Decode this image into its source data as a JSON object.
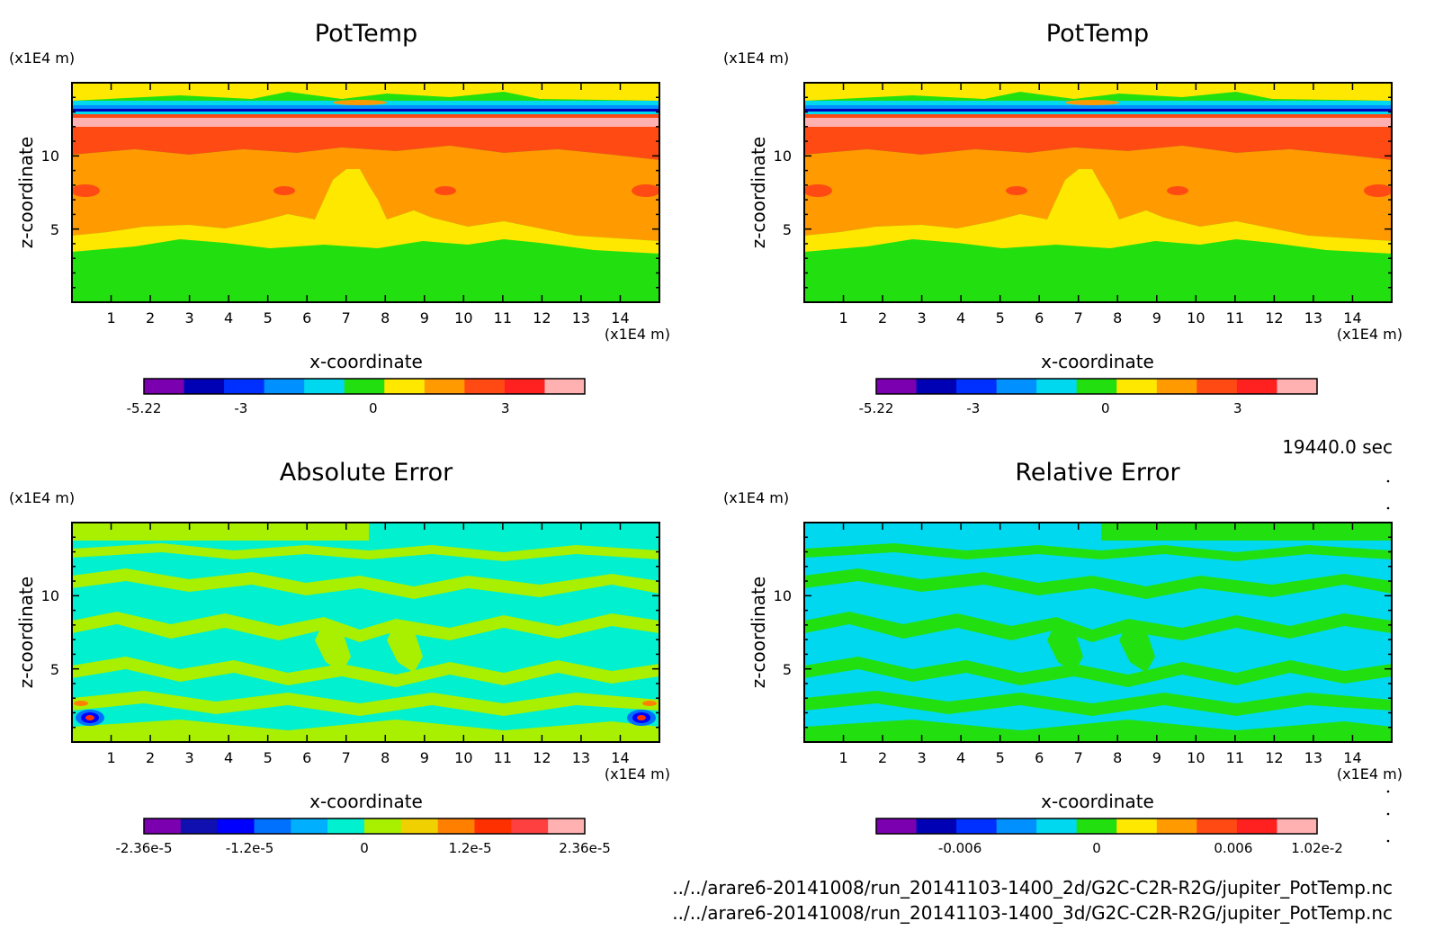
{
  "panels": [
    {
      "title": "PotTemp",
      "x_unit": "(x1E4 m)",
      "y_unit": "(x1E4 m)",
      "xlabel": "x-coordinate",
      "ylabel": "z-coordinate",
      "colorbar_labels": [
        "-5.22",
        "-3",
        "0",
        "3"
      ],
      "colorbar_colors": [
        "#7a00b0",
        "#0000b4",
        "#0030ff",
        "#0090ff",
        "#00d8f0",
        "#22e010",
        "#ffe800",
        "#ff9a00",
        "#ff4a14",
        "#ff2020",
        "#ffb0b0"
      ]
    },
    {
      "title": "PotTemp",
      "x_unit": "(x1E4 m)",
      "y_unit": "(x1E4 m)",
      "xlabel": "x-coordinate",
      "ylabel": "z-coordinate",
      "colorbar_labels": [
        "-5.22",
        "-3",
        "0",
        "3"
      ],
      "colorbar_colors": [
        "#7a00b0",
        "#0000b4",
        "#0030ff",
        "#0090ff",
        "#00d8f0",
        "#22e010",
        "#ffe800",
        "#ff9a00",
        "#ff4a14",
        "#ff2020",
        "#ffb0b0"
      ]
    },
    {
      "title": "Absolute Error",
      "x_unit": "(x1E4 m)",
      "y_unit": "(x1E4 m)",
      "xlabel": "x-coordinate",
      "ylabel": "z-coordinate",
      "colorbar_labels": [
        "-2.36e-5",
        "-1.2e-5",
        "0",
        "1.2e-5",
        "2.36e-5"
      ],
      "colorbar_colors": [
        "#7a00b0",
        "#1010b0",
        "#0000ff",
        "#0070ff",
        "#00b0ff",
        "#00f0d0",
        "#a8f000",
        "#f0d000",
        "#ff8000",
        "#ff3000",
        "#ff4040",
        "#ffb0b0"
      ]
    },
    {
      "title": "Relative Error",
      "x_unit": "(x1E4 m)",
      "y_unit": "(x1E4 m)",
      "xlabel": "x-coordinate",
      "ylabel": "z-coordinate",
      "colorbar_labels": [
        "-0.006",
        "0",
        "0.006",
        "1.02e-2"
      ],
      "colorbar_colors": [
        "#7a00b0",
        "#0000b4",
        "#0030ff",
        "#0090ff",
        "#00d8f0",
        "#22e010",
        "#ffe800",
        "#ff9a00",
        "#ff4a14",
        "#ff2020",
        "#ffb0b0"
      ]
    }
  ],
  "time_label": "19440.0 sec",
  "file_paths": [
    "../../arare6-20141008/run_20141103-1400_2d/G2C-C2R-R2G/jupiter_PotTemp.nc",
    "../../arare6-20141008/run_20141103-1400_3d/G2C-C2R-R2G/jupiter_PotTemp.nc"
  ],
  "chart_data": [
    {
      "type": "heatmap",
      "title": "PotTemp",
      "xlabel": "x-coordinate",
      "ylabel": "z-coordinate",
      "x_unit": "(x1E4 m)",
      "y_unit": "(x1E4 m)",
      "xlim": [
        0,
        15
      ],
      "ylim": [
        0,
        15
      ],
      "x_ticks": [
        "1",
        "2",
        "3",
        "4",
        "5",
        "6",
        "7",
        "8",
        "9",
        "10",
        "11",
        "12",
        "13",
        "14"
      ],
      "y_ticks": [
        "5",
        "10"
      ],
      "colorbar_labels": [
        "-5.22",
        "-3",
        "0",
        "3"
      ]
    },
    {
      "type": "heatmap",
      "title": "PotTemp",
      "xlabel": "x-coordinate",
      "ylabel": "z-coordinate",
      "x_unit": "(x1E4 m)",
      "y_unit": "(x1E4 m)",
      "xlim": [
        0,
        15
      ],
      "ylim": [
        0,
        15
      ],
      "x_ticks": [
        "1",
        "2",
        "3",
        "4",
        "5",
        "6",
        "7",
        "8",
        "9",
        "10",
        "11",
        "12",
        "13",
        "14"
      ],
      "y_ticks": [
        "5",
        "10"
      ],
      "colorbar_labels": [
        "-5.22",
        "-3",
        "0",
        "3"
      ]
    },
    {
      "type": "heatmap",
      "title": "Absolute Error",
      "xlabel": "x-coordinate",
      "ylabel": "z-coordinate",
      "x_unit": "(x1E4 m)",
      "y_unit": "(x1E4 m)",
      "xlim": [
        0,
        15
      ],
      "ylim": [
        0,
        15
      ],
      "x_ticks": [
        "1",
        "2",
        "3",
        "4",
        "5",
        "6",
        "7",
        "8",
        "9",
        "10",
        "11",
        "12",
        "13",
        "14"
      ],
      "y_ticks": [
        "5",
        "10"
      ],
      "colorbar_labels": [
        "-2.36e-5",
        "-1.2e-5",
        "0",
        "1.2e-5",
        "2.36e-5"
      ]
    },
    {
      "type": "heatmap",
      "title": "Relative Error",
      "xlabel": "x-coordinate",
      "ylabel": "z-coordinate",
      "x_unit": "(x1E4 m)",
      "y_unit": "(x1E4 m)",
      "xlim": [
        0,
        15
      ],
      "ylim": [
        0,
        15
      ],
      "x_ticks": [
        "1",
        "2",
        "3",
        "4",
        "5",
        "6",
        "7",
        "8",
        "9",
        "10",
        "11",
        "12",
        "13",
        "14"
      ],
      "y_ticks": [
        "5",
        "10"
      ],
      "colorbar_labels": [
        "-0.006",
        "0",
        "0.006",
        "1.02e-2"
      ]
    }
  ]
}
